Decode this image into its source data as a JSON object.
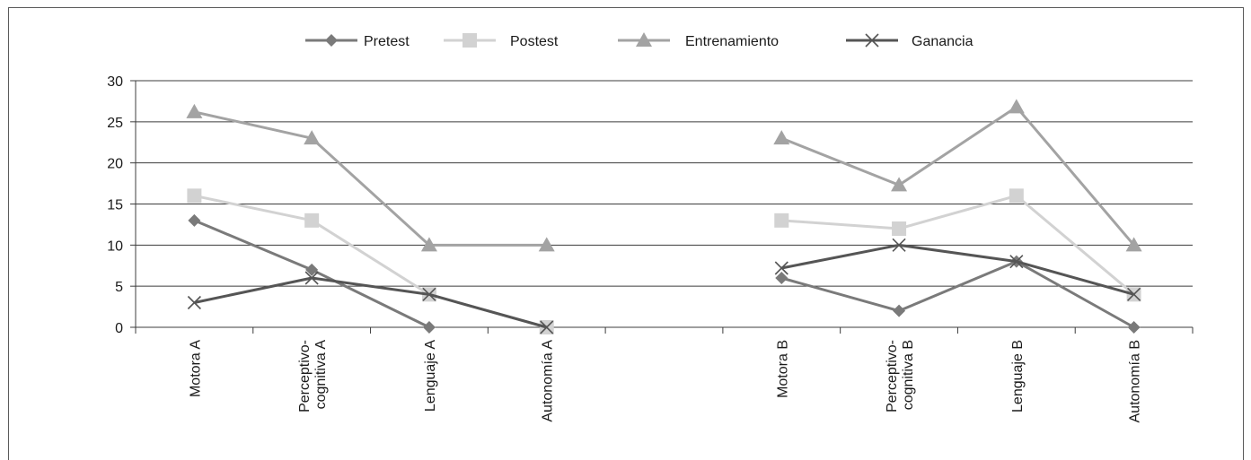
{
  "chart_data": {
    "type": "line",
    "categories": [
      "Motora A",
      "Perceptivo-\ncognitiva A",
      "Lenguaje A",
      "Autonomía A",
      "",
      "Motora B",
      "Perceptivo-\ncognitiva B",
      "Lenguaje B",
      "Autonomía B"
    ],
    "ylim": [
      0,
      30
    ],
    "yticks": [
      0,
      5,
      10,
      15,
      20,
      25,
      30
    ],
    "grid": true,
    "legend_position": "top",
    "series": [
      {
        "name": "Pretest",
        "marker": "diamond",
        "color": "#7a7a7a",
        "values": [
          13,
          7,
          0,
          null,
          null,
          6,
          2,
          8,
          0
        ]
      },
      {
        "name": "Postest",
        "marker": "square",
        "color": "#d2d2d2",
        "values": [
          16,
          13,
          4,
          0,
          null,
          13,
          12,
          16,
          4
        ]
      },
      {
        "name": "Entrenamiento",
        "marker": "triangle",
        "color": "#a3a3a3",
        "values": [
          26.2,
          23,
          10,
          10,
          null,
          23,
          17.3,
          26.8,
          10
        ]
      },
      {
        "name": "Ganancia",
        "marker": "x",
        "color": "#555555",
        "values": [
          3,
          6,
          4,
          0,
          null,
          7.2,
          10,
          8,
          4
        ]
      }
    ]
  }
}
